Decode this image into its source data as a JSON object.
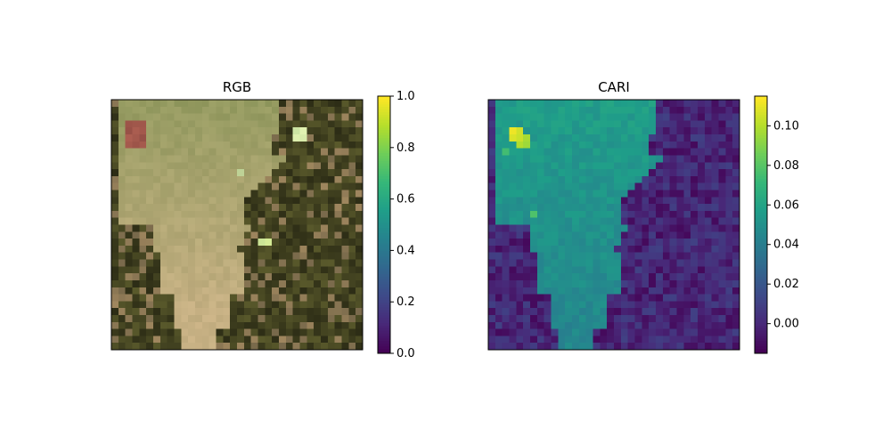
{
  "chart_data": [
    {
      "type": "heatmap",
      "title": "RGB",
      "grid": false,
      "axes_ticks": false,
      "image": {
        "rows": 36,
        "cols": 36,
        "description": "false-colour satellite patch: light tan open area in centre, dark green/brown vegetation at left-bottom and right edges, reddish patch top-left, bright green spots"
      },
      "colorbar": {
        "colormap": "viridis",
        "range": [
          0.0,
          1.0
        ],
        "ticks": [
          0.0,
          0.2,
          0.4,
          0.6,
          0.8,
          1.0
        ],
        "tick_labels": [
          "0.0",
          "0.2",
          "0.4",
          "0.6",
          "0.8",
          "1.0"
        ]
      }
    },
    {
      "type": "heatmap",
      "title": "CARI",
      "grid": false,
      "axes_ticks": false,
      "image": {
        "rows": 36,
        "cols": 36,
        "colormap": "viridis",
        "value_range": [
          -0.015,
          0.115
        ],
        "hotspots": [
          {
            "row": 4,
            "col": 3,
            "value": 0.112
          },
          {
            "row": 4,
            "col": 4,
            "value": 0.106
          },
          {
            "row": 5,
            "col": 3,
            "value": 0.108
          },
          {
            "row": 5,
            "col": 4,
            "value": 0.105
          },
          {
            "row": 5,
            "col": 5,
            "value": 0.098
          },
          {
            "row": 6,
            "col": 4,
            "value": 0.1
          },
          {
            "row": 6,
            "col": 5,
            "value": 0.096
          },
          {
            "row": 7,
            "col": 2,
            "value": 0.075
          },
          {
            "row": 16,
            "col": 6,
            "value": 0.078
          }
        ]
      },
      "colorbar": {
        "colormap": "viridis",
        "range": [
          -0.015,
          0.115
        ],
        "ticks": [
          0.0,
          0.02,
          0.04,
          0.06,
          0.08,
          0.1
        ],
        "tick_labels": [
          "0.00",
          "0.02",
          "0.04",
          "0.06",
          "0.08",
          "0.10"
        ]
      }
    }
  ]
}
